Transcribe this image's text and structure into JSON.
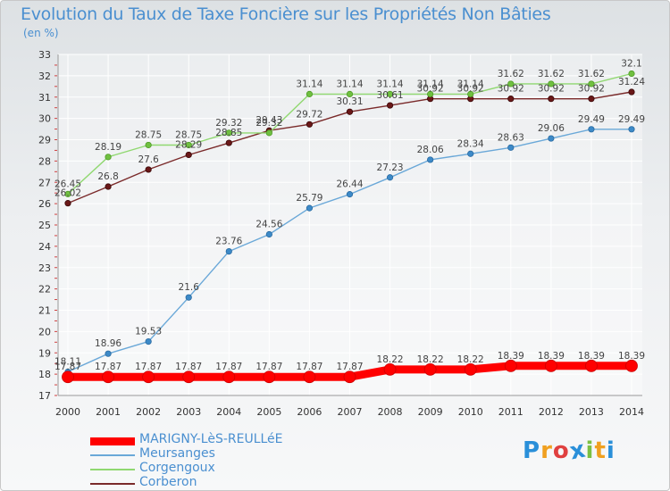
{
  "title": "Evolution du Taux de Taxe Foncière sur les Propriétés Non Bâties",
  "subtitle": "(en %)",
  "logo": {
    "letters": [
      "P",
      "r",
      "o",
      "x",
      "i",
      "t",
      "i"
    ],
    "colors": [
      "#2a8fd9",
      "#f0a020",
      "#e04040",
      "#2a8fd9",
      "#7bc043",
      "#f0a020",
      "#2a8fd9"
    ]
  },
  "chart_data": {
    "type": "line",
    "x": [
      2000,
      2001,
      2002,
      2003,
      2004,
      2005,
      2006,
      2007,
      2008,
      2009,
      2010,
      2011,
      2012,
      2013,
      2014
    ],
    "ylim": [
      17,
      33
    ],
    "yticks": [
      17,
      18,
      19,
      20,
      21,
      22,
      23,
      24,
      25,
      26,
      27,
      28,
      29,
      30,
      31,
      32,
      33
    ],
    "grid": true,
    "legend_position": "bottom-left",
    "series": [
      {
        "name": "MARIGNY-LèS-REULLéE",
        "color": "#ff0000",
        "values": [
          17.87,
          17.87,
          17.87,
          17.87,
          17.87,
          17.87,
          17.87,
          17.87,
          18.22,
          18.22,
          18.22,
          18.39,
          18.39,
          18.39,
          18.39
        ],
        "labels": [
          "17.87",
          "17.87",
          "17.87",
          "17.87",
          "17.87",
          "17.87",
          "17.87",
          "17.87",
          "18.22",
          "18.22",
          "18.22",
          "18.39",
          "18.39",
          "18.39",
          "18.39"
        ]
      },
      {
        "name": "Meursanges",
        "color": "#6aa8d8",
        "values": [
          18.11,
          18.96,
          19.53,
          21.6,
          23.76,
          24.56,
          25.79,
          26.44,
          27.23,
          28.06,
          28.34,
          28.63,
          29.06,
          29.49,
          29.49
        ],
        "labels": [
          "18.11",
          "18.96",
          "19.53",
          "21.6",
          "23.76",
          "24.56",
          "25.79",
          "26.44",
          "27.23",
          "28.06",
          "28.34",
          "28.63",
          "29.06",
          "29.49",
          "29.49"
        ]
      },
      {
        "name": "Corgengoux",
        "color": "#90d870",
        "values": [
          26.45,
          28.19,
          28.75,
          28.75,
          29.32,
          29.32,
          31.14,
          31.14,
          31.14,
          31.14,
          31.14,
          31.62,
          31.62,
          31.62,
          32.1
        ],
        "labels": [
          "26.45",
          "28.19",
          "28.75",
          "28.75",
          "29.32",
          "29.32",
          "31.14",
          "31.14",
          "31.14",
          "31.14",
          "31.14",
          "31.62",
          "31.62",
          "31.62",
          "32.1"
        ]
      },
      {
        "name": "Corberon",
        "color": "#7a2a2a",
        "values": [
          26.02,
          26.8,
          27.6,
          28.29,
          28.85,
          29.43,
          29.72,
          30.31,
          30.61,
          30.92,
          30.92,
          30.92,
          30.92,
          30.92,
          31.24
        ],
        "labels": [
          "26.02",
          "26.8",
          "27.6",
          "28.29",
          "28.85",
          "29.43",
          "29.72",
          "30.31",
          "30.61",
          "30.92",
          "30.92",
          "30.92",
          "30.92",
          "30.92",
          "31.24"
        ]
      }
    ]
  }
}
